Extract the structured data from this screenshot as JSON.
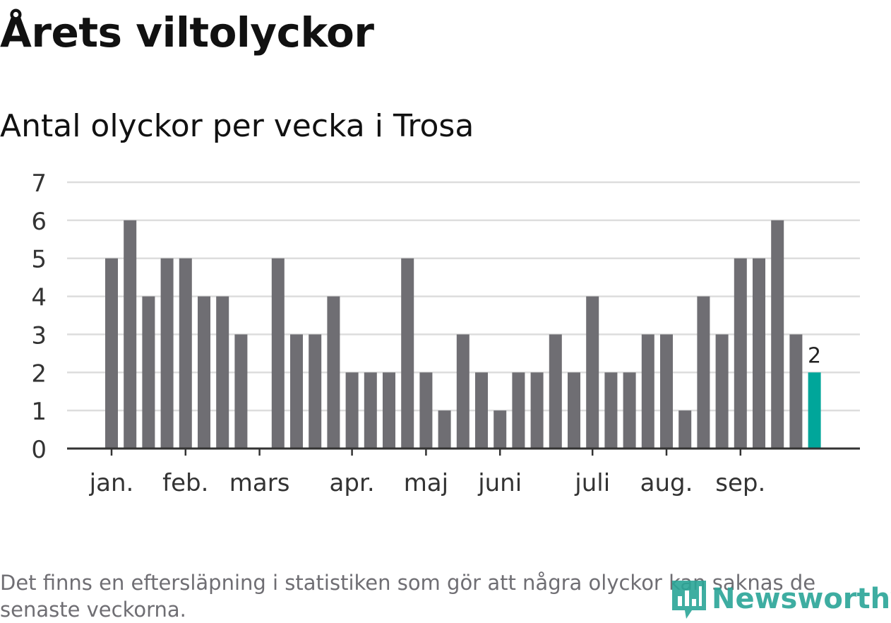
{
  "title": "Årets viltolyckor",
  "subtitle": "Antal olyckor per vecka i Trosa",
  "note": "Det finns en eftersläpning i statistiken som gör att några olyckor kan saknas de senaste veckorna.",
  "logo_text": "Newsworthy",
  "colors": {
    "bar": "#6f6e73",
    "highlight": "#00a69a",
    "grid": "#dddddd",
    "axis": "#333333"
  },
  "chart_data": {
    "type": "bar",
    "ylim": [
      0,
      7
    ],
    "y_ticks": [
      "0",
      "1",
      "2",
      "3",
      "4",
      "5",
      "6",
      "7"
    ],
    "values": [
      5,
      6,
      4,
      5,
      5,
      4,
      4,
      3,
      0,
      5,
      3,
      3,
      4,
      2,
      2,
      2,
      5,
      2,
      1,
      3,
      2,
      1,
      2,
      2,
      3,
      2,
      4,
      2,
      2,
      3,
      3,
      1,
      4,
      3,
      5,
      5,
      6,
      3,
      2
    ],
    "highlight_index": 38,
    "highlight_label": "2",
    "month_labels": [
      {
        "label": "jan.",
        "week": 0
      },
      {
        "label": "feb.",
        "week": 4
      },
      {
        "label": "mars",
        "week": 8
      },
      {
        "label": "apr.",
        "week": 13
      },
      {
        "label": "maj",
        "week": 17
      },
      {
        "label": "juni",
        "week": 21
      },
      {
        "label": "juli",
        "week": 26
      },
      {
        "label": "aug.",
        "week": 30
      },
      {
        "label": "sep.",
        "week": 34
      }
    ],
    "grid": true
  }
}
